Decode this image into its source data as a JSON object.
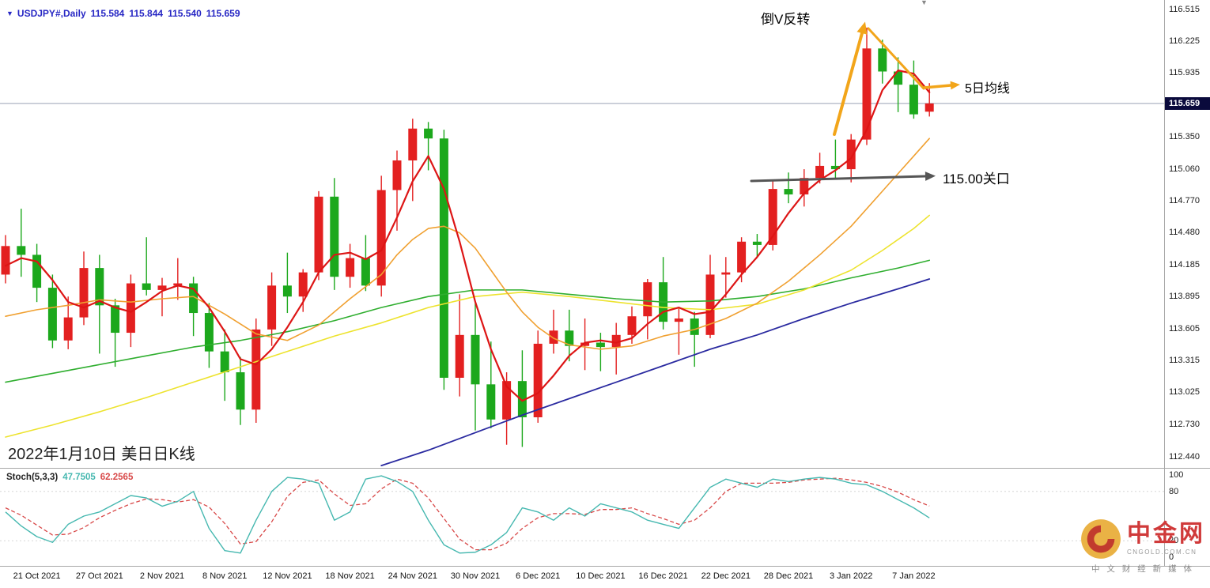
{
  "title_bar": {
    "collapse_icon": "▼",
    "symbol": "USDJPY#,Daily",
    "open": "115.584",
    "high": "115.844",
    "low": "115.540",
    "close": "115.659"
  },
  "annotations": {
    "inverted_v": {
      "text": "倒V反转"
    },
    "ma5": {
      "text": "5日均线"
    },
    "level": {
      "text": "115.00关口"
    },
    "date_note": {
      "text": "2022年1月10日 美日日K线"
    },
    "shift_marker_icon": "▼"
  },
  "price_axis": {
    "current": "115.659"
  },
  "watermark": {
    "brand": "中金网",
    "domain": "CNGOLD.COM.CN",
    "tagline": "中 文 财 经 新 媒 体"
  },
  "colors": {
    "up": "#e32020",
    "down": "#1ca81c",
    "price_line": "#9aa0b4",
    "price_tag_bg": "#0a0a3c",
    "title_text": "#2727c4",
    "annotation_orange": "#f2a51a",
    "annotation_gray": "#555555",
    "stoch_k": "#46b8b0",
    "stoch_d": "#d84848",
    "stoch_level": "#d5d5d5"
  },
  "chart_data": {
    "type": "candlestick",
    "title": "USDJPY# Daily",
    "y_range": [
      112.44,
      116.515
    ],
    "y_ticks": [
      "116.515",
      "116.225",
      "115.935",
      "115.350",
      "115.060",
      "114.770",
      "114.480",
      "114.185",
      "113.895",
      "113.605",
      "113.315",
      "113.025",
      "112.730",
      "112.440"
    ],
    "x_labels": [
      {
        "i": 2,
        "t": "21 Oct 2021"
      },
      {
        "i": 6,
        "t": "27 Oct 2021"
      },
      {
        "i": 10,
        "t": "2 Nov 2021"
      },
      {
        "i": 14,
        "t": "8 Nov 2021"
      },
      {
        "i": 18,
        "t": "12 Nov 2021"
      },
      {
        "i": 22,
        "t": "18 Nov 2021"
      },
      {
        "i": 26,
        "t": "24 Nov 2021"
      },
      {
        "i": 30,
        "t": "30 Nov 2021"
      },
      {
        "i": 34,
        "t": "6 Dec 2021"
      },
      {
        "i": 38,
        "t": "10 Dec 2021"
      },
      {
        "i": 42,
        "t": "16 Dec 2021"
      },
      {
        "i": 46,
        "t": "22 Dec 2021"
      },
      {
        "i": 50,
        "t": "28 Dec 2021"
      },
      {
        "i": 54,
        "t": "3 Jan 2022"
      },
      {
        "i": 58,
        "t": "7 Jan 2022"
      }
    ],
    "candles": [
      [
        114.1,
        114.46,
        114.02,
        114.36
      ],
      [
        114.36,
        114.7,
        114.08,
        114.28
      ],
      [
        114.28,
        114.38,
        113.85,
        113.98
      ],
      [
        113.98,
        114.1,
        113.43,
        113.5
      ],
      [
        113.5,
        113.9,
        113.42,
        113.71
      ],
      [
        113.71,
        114.31,
        113.64,
        114.16
      ],
      [
        114.16,
        114.28,
        113.38,
        113.82
      ],
      [
        113.82,
        113.88,
        113.26,
        113.57
      ],
      [
        113.57,
        114.1,
        113.44,
        114.02
      ],
      [
        114.02,
        114.44,
        113.91,
        113.96
      ],
      [
        113.96,
        114.07,
        113.72,
        114.0
      ],
      [
        114.0,
        114.25,
        113.87,
        114.02
      ],
      [
        114.02,
        114.08,
        113.54,
        113.75
      ],
      [
        113.75,
        113.84,
        113.25,
        113.4
      ],
      [
        113.4,
        113.6,
        112.95,
        113.21
      ],
      [
        113.21,
        113.35,
        112.73,
        112.87
      ],
      [
        112.87,
        113.7,
        112.75,
        113.6
      ],
      [
        113.6,
        114.12,
        113.45,
        114.0
      ],
      [
        114.0,
        114.3,
        113.75,
        113.9
      ],
      [
        113.9,
        114.15,
        113.76,
        114.12
      ],
      [
        114.12,
        114.86,
        114.05,
        114.81
      ],
      [
        114.81,
        114.98,
        113.96,
        114.08
      ],
      [
        114.08,
        114.38,
        113.98,
        114.25
      ],
      [
        114.25,
        114.46,
        113.95,
        114.0
      ],
      [
        114.0,
        115.0,
        113.9,
        114.87
      ],
      [
        114.87,
        115.23,
        114.5,
        115.14
      ],
      [
        115.14,
        115.52,
        114.77,
        115.43
      ],
      [
        115.43,
        115.49,
        115.05,
        115.34
      ],
      [
        115.34,
        115.42,
        113.05,
        113.16
      ],
      [
        113.16,
        113.92,
        112.99,
        113.55
      ],
      [
        113.55,
        113.85,
        112.68,
        113.1
      ],
      [
        113.1,
        113.49,
        112.7,
        112.78
      ],
      [
        112.78,
        113.21,
        112.55,
        113.13
      ],
      [
        113.13,
        113.41,
        112.53,
        112.8
      ],
      [
        112.8,
        113.59,
        112.75,
        113.47
      ],
      [
        113.47,
        113.78,
        113.38,
        113.59
      ],
      [
        113.59,
        113.78,
        113.31,
        113.45
      ],
      [
        113.45,
        113.7,
        113.23,
        113.48
      ],
      [
        113.48,
        113.57,
        113.22,
        113.44
      ],
      [
        113.44,
        113.66,
        113.19,
        113.55
      ],
      [
        113.55,
        113.81,
        113.47,
        113.72
      ],
      [
        113.72,
        114.06,
        113.51,
        114.03
      ],
      [
        114.03,
        114.26,
        113.6,
        113.67
      ],
      [
        113.67,
        113.8,
        113.37,
        113.7
      ],
      [
        113.7,
        113.76,
        113.26,
        113.55
      ],
      [
        113.55,
        114.28,
        113.52,
        114.1
      ],
      [
        114.1,
        114.26,
        113.89,
        114.12
      ],
      [
        114.12,
        114.44,
        114.03,
        114.4
      ],
      [
        114.4,
        114.47,
        114.26,
        114.37
      ],
      [
        114.37,
        114.96,
        114.32,
        114.88
      ],
      [
        114.88,
        115.03,
        114.75,
        114.83
      ],
      [
        114.83,
        115.06,
        114.72,
        114.98
      ],
      [
        114.98,
        115.21,
        114.93,
        115.09
      ],
      [
        115.09,
        115.33,
        114.97,
        115.06
      ],
      [
        115.06,
        115.38,
        114.94,
        115.33
      ],
      [
        115.33,
        116.35,
        115.28,
        116.16
      ],
      [
        116.16,
        116.24,
        115.84,
        115.95
      ],
      [
        115.95,
        116.08,
        115.58,
        115.83
      ],
      [
        115.83,
        116.05,
        115.52,
        115.56
      ],
      [
        115.584,
        115.844,
        115.54,
        115.659
      ]
    ],
    "moving_averages": [
      {
        "name": "ma-long-blue",
        "color": "#2a2aa0",
        "width": 1.8,
        "points": [
          [
            24,
            112.36
          ],
          [
            27,
            112.5
          ],
          [
            30,
            112.66
          ],
          [
            33,
            112.82
          ],
          [
            36,
            112.97
          ],
          [
            39,
            113.12
          ],
          [
            42,
            113.27
          ],
          [
            45,
            113.42
          ],
          [
            48,
            113.55
          ],
          [
            51,
            113.7
          ],
          [
            54,
            113.84
          ],
          [
            57,
            113.97
          ],
          [
            59,
            114.06
          ]
        ]
      },
      {
        "name": "ma-mid-green",
        "color": "#2fae2f",
        "width": 1.6,
        "points": [
          [
            0,
            113.12
          ],
          [
            3,
            113.2
          ],
          [
            6,
            113.28
          ],
          [
            9,
            113.36
          ],
          [
            12,
            113.44
          ],
          [
            15,
            113.5
          ],
          [
            18,
            113.58
          ],
          [
            21,
            113.68
          ],
          [
            24,
            113.8
          ],
          [
            27,
            113.9
          ],
          [
            30,
            113.96
          ],
          [
            33,
            113.96
          ],
          [
            36,
            113.92
          ],
          [
            39,
            113.88
          ],
          [
            42,
            113.85
          ],
          [
            45,
            113.86
          ],
          [
            48,
            113.9
          ],
          [
            51,
            113.97
          ],
          [
            54,
            114.07
          ],
          [
            57,
            114.16
          ],
          [
            59,
            114.23
          ]
        ]
      },
      {
        "name": "ma-slow-yellow",
        "color": "#ede32e",
        "width": 1.6,
        "points": [
          [
            0,
            112.62
          ],
          [
            3,
            112.73
          ],
          [
            6,
            112.85
          ],
          [
            9,
            112.98
          ],
          [
            12,
            113.12
          ],
          [
            15,
            113.26
          ],
          [
            18,
            113.4
          ],
          [
            21,
            113.54
          ],
          [
            24,
            113.66
          ],
          [
            27,
            113.8
          ],
          [
            30,
            113.9
          ],
          [
            33,
            113.94
          ],
          [
            36,
            113.9
          ],
          [
            39,
            113.85
          ],
          [
            42,
            113.8
          ],
          [
            45,
            113.78
          ],
          [
            48,
            113.83
          ],
          [
            51,
            113.96
          ],
          [
            54,
            114.14
          ],
          [
            56,
            114.32
          ],
          [
            58,
            114.52
          ],
          [
            59,
            114.64
          ]
        ]
      },
      {
        "name": "ma-medium-orange",
        "color": "#f0a030",
        "width": 1.6,
        "points": [
          [
            0,
            113.72
          ],
          [
            2,
            113.78
          ],
          [
            4,
            113.82
          ],
          [
            6,
            113.87
          ],
          [
            8,
            113.85
          ],
          [
            10,
            113.88
          ],
          [
            12,
            113.9
          ],
          [
            14,
            113.74
          ],
          [
            16,
            113.56
          ],
          [
            18,
            113.5
          ],
          [
            20,
            113.64
          ],
          [
            22,
            113.88
          ],
          [
            24,
            114.1
          ],
          [
            25,
            114.28
          ],
          [
            26,
            114.42
          ],
          [
            27,
            114.52
          ],
          [
            28,
            114.54
          ],
          [
            29,
            114.48
          ],
          [
            30,
            114.34
          ],
          [
            31,
            114.14
          ],
          [
            32,
            113.94
          ],
          [
            33,
            113.76
          ],
          [
            34,
            113.62
          ],
          [
            35,
            113.52
          ],
          [
            36,
            113.46
          ],
          [
            38,
            113.42
          ],
          [
            40,
            113.45
          ],
          [
            42,
            113.54
          ],
          [
            44,
            113.6
          ],
          [
            46,
            113.7
          ],
          [
            48,
            113.84
          ],
          [
            50,
            114.04
          ],
          [
            52,
            114.28
          ],
          [
            54,
            114.54
          ],
          [
            56,
            114.86
          ],
          [
            57,
            115.02
          ],
          [
            58,
            115.18
          ],
          [
            59,
            115.34
          ]
        ]
      },
      {
        "name": "ma-fast-red",
        "color": "#dd1515",
        "width": 2.2,
        "points": [
          [
            0,
            114.18
          ],
          [
            1,
            114.25
          ],
          [
            2,
            114.22
          ],
          [
            3,
            114.05
          ],
          [
            4,
            113.85
          ],
          [
            5,
            113.8
          ],
          [
            6,
            113.86
          ],
          [
            7,
            113.8
          ],
          [
            8,
            113.76
          ],
          [
            9,
            113.85
          ],
          [
            10,
            113.95
          ],
          [
            11,
            114.0
          ],
          [
            12,
            113.97
          ],
          [
            13,
            113.8
          ],
          [
            14,
            113.58
          ],
          [
            15,
            113.33
          ],
          [
            16,
            113.28
          ],
          [
            17,
            113.42
          ],
          [
            18,
            113.62
          ],
          [
            19,
            113.85
          ],
          [
            20,
            114.12
          ],
          [
            21,
            114.28
          ],
          [
            22,
            114.3
          ],
          [
            23,
            114.24
          ],
          [
            24,
            114.32
          ],
          [
            25,
            114.62
          ],
          [
            26,
            114.95
          ],
          [
            27,
            115.18
          ],
          [
            28,
            114.88
          ],
          [
            29,
            114.4
          ],
          [
            30,
            113.85
          ],
          [
            31,
            113.42
          ],
          [
            32,
            113.08
          ],
          [
            33,
            112.95
          ],
          [
            34,
            113.02
          ],
          [
            35,
            113.18
          ],
          [
            36,
            113.36
          ],
          [
            37,
            113.48
          ],
          [
            38,
            113.5
          ],
          [
            39,
            113.48
          ],
          [
            40,
            113.52
          ],
          [
            41,
            113.65
          ],
          [
            42,
            113.76
          ],
          [
            43,
            113.8
          ],
          [
            44,
            113.74
          ],
          [
            45,
            113.76
          ],
          [
            46,
            113.92
          ],
          [
            47,
            114.1
          ],
          [
            48,
            114.26
          ],
          [
            49,
            114.45
          ],
          [
            50,
            114.66
          ],
          [
            51,
            114.84
          ],
          [
            52,
            114.96
          ],
          [
            53,
            115.05
          ],
          [
            54,
            115.16
          ],
          [
            55,
            115.42
          ],
          [
            56,
            115.78
          ],
          [
            57,
            115.96
          ],
          [
            58,
            115.93
          ],
          [
            59,
            115.76
          ]
        ]
      }
    ],
    "stochastic": {
      "label": "Stoch(5,3,3)",
      "k_value": "47.7505",
      "d_value": "62.2565",
      "scale": [
        "100",
        "80",
        "20",
        "0"
      ],
      "k": [
        55,
        38,
        25,
        18,
        40,
        50,
        55,
        65,
        75,
        72,
        62,
        68,
        80,
        35,
        8,
        5,
        45,
        80,
        97,
        95,
        90,
        45,
        55,
        95,
        99,
        92,
        80,
        45,
        15,
        5,
        6,
        15,
        30,
        60,
        55,
        45,
        60,
        50,
        65,
        60,
        55,
        45,
        40,
        35,
        60,
        85,
        95,
        90,
        85,
        95,
        92,
        95,
        97,
        95,
        90,
        88,
        80,
        70,
        60,
        47.75
      ],
      "d": [
        60,
        51,
        39,
        27,
        28,
        36,
        48,
        57,
        65,
        71,
        70,
        67,
        70,
        61,
        41,
        16,
        19,
        43,
        74,
        91,
        94,
        77,
        63,
        65,
        83,
        95,
        90,
        72,
        47,
        22,
        9,
        9,
        17,
        35,
        48,
        53,
        53,
        52,
        58,
        58,
        60,
        53,
        47,
        40,
        45,
        60,
        80,
        90,
        90,
        90,
        91,
        94,
        95,
        96,
        94,
        91,
        86,
        79,
        70,
        62.26
      ]
    }
  }
}
